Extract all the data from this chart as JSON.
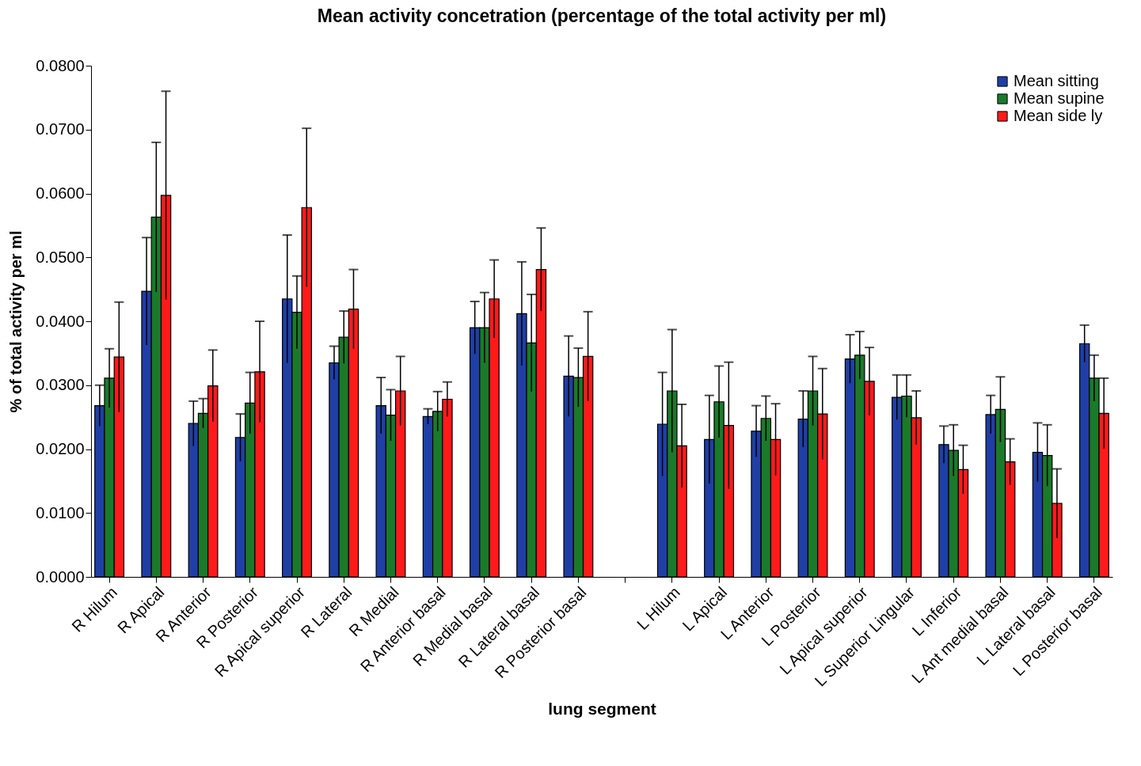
{
  "chart_data": {
    "type": "bar",
    "title": "Mean activity concetration (percentage of the total activity per ml)",
    "xlabel": "lung segment",
    "ylabel": "% of total activity per ml",
    "categories": [
      "R Hilum",
      "R Apical",
      "R Anterior",
      "R Posterior",
      "R Apical superior",
      "R Lateral",
      "R Medial",
      "R Anterior basal",
      "R Medial basal",
      "R Lateral basal",
      "R Posterior basal",
      null,
      "L Hilum",
      "L Apical",
      "L Anterior",
      "L Posterior",
      "L Apical superior",
      "L Superior Lingular",
      "L Inferior",
      "L Ant medial basal",
      "L Lateral basal",
      "L Posterior basal"
    ],
    "series": [
      {
        "name": "Mean sitting",
        "color": "#1f3fa6",
        "values": [
          0.0268,
          0.0447,
          0.024,
          0.0218,
          0.0435,
          0.0335,
          0.0268,
          0.0251,
          0.039,
          0.0412,
          0.0314,
          null,
          0.0239,
          0.0215,
          0.0228,
          0.0247,
          0.0341,
          0.0281,
          0.0207,
          0.0254,
          0.0195,
          0.0365
        ],
        "errors": [
          0.0032,
          0.0084,
          0.0035,
          0.0037,
          0.01,
          0.0026,
          0.0044,
          0.0012,
          0.0041,
          0.0081,
          0.0063,
          null,
          0.0081,
          0.0069,
          0.004,
          0.0044,
          0.0038,
          0.0035,
          0.0029,
          0.003,
          0.0046,
          0.0029
        ]
      },
      {
        "name": "Mean supine",
        "color": "#1a7a2a",
        "values": [
          0.0311,
          0.0563,
          0.0256,
          0.0272,
          0.0414,
          0.0375,
          0.0253,
          0.0259,
          0.039,
          0.0366,
          0.0312,
          null,
          0.0291,
          0.0274,
          0.0248,
          0.0291,
          0.0347,
          0.0283,
          0.0198,
          0.0262,
          0.019,
          0.0311
        ],
        "errors": [
          0.0046,
          0.0117,
          0.0023,
          0.0048,
          0.0057,
          0.0041,
          0.004,
          0.0031,
          0.0055,
          0.0076,
          0.0046,
          null,
          0.0096,
          0.0056,
          0.0035,
          0.0054,
          0.0037,
          0.0033,
          0.004,
          0.0051,
          0.0048,
          0.0036
        ]
      },
      {
        "name": "Mean side ly",
        "color": "#ff1a1a",
        "values": [
          0.0344,
          0.0597,
          0.0299,
          0.0321,
          0.0578,
          0.0419,
          0.0291,
          0.0278,
          0.0435,
          0.0481,
          0.0345,
          null,
          0.0205,
          0.0237,
          0.0215,
          0.0255,
          0.0306,
          0.0249,
          0.0168,
          0.018,
          0.0115,
          0.0256
        ],
        "errors": [
          0.0086,
          0.0163,
          0.0056,
          0.0079,
          0.0124,
          0.0062,
          0.0054,
          0.0027,
          0.0061,
          0.0065,
          0.007,
          null,
          0.0065,
          0.0099,
          0.0056,
          0.0071,
          0.0053,
          0.0042,
          0.0038,
          0.0036,
          0.0054,
          0.0055
        ]
      }
    ],
    "ylim": [
      0,
      0.08
    ],
    "yticks": [
      {
        "value": 0,
        "label": "0.0000"
      },
      {
        "value": 0.01,
        "label": "0.0100"
      },
      {
        "value": 0.02,
        "label": "0.0200"
      },
      {
        "value": 0.03,
        "label": "0.0300"
      },
      {
        "value": 0.04,
        "label": "0.0400"
      },
      {
        "value": 0.05,
        "label": "0.0500"
      },
      {
        "value": 0.06,
        "label": "0.0600"
      },
      {
        "value": 0.07,
        "label": "0.0700"
      },
      {
        "value": 0.08,
        "label": "0.0800"
      }
    ],
    "grid": false,
    "legend": "top right"
  }
}
